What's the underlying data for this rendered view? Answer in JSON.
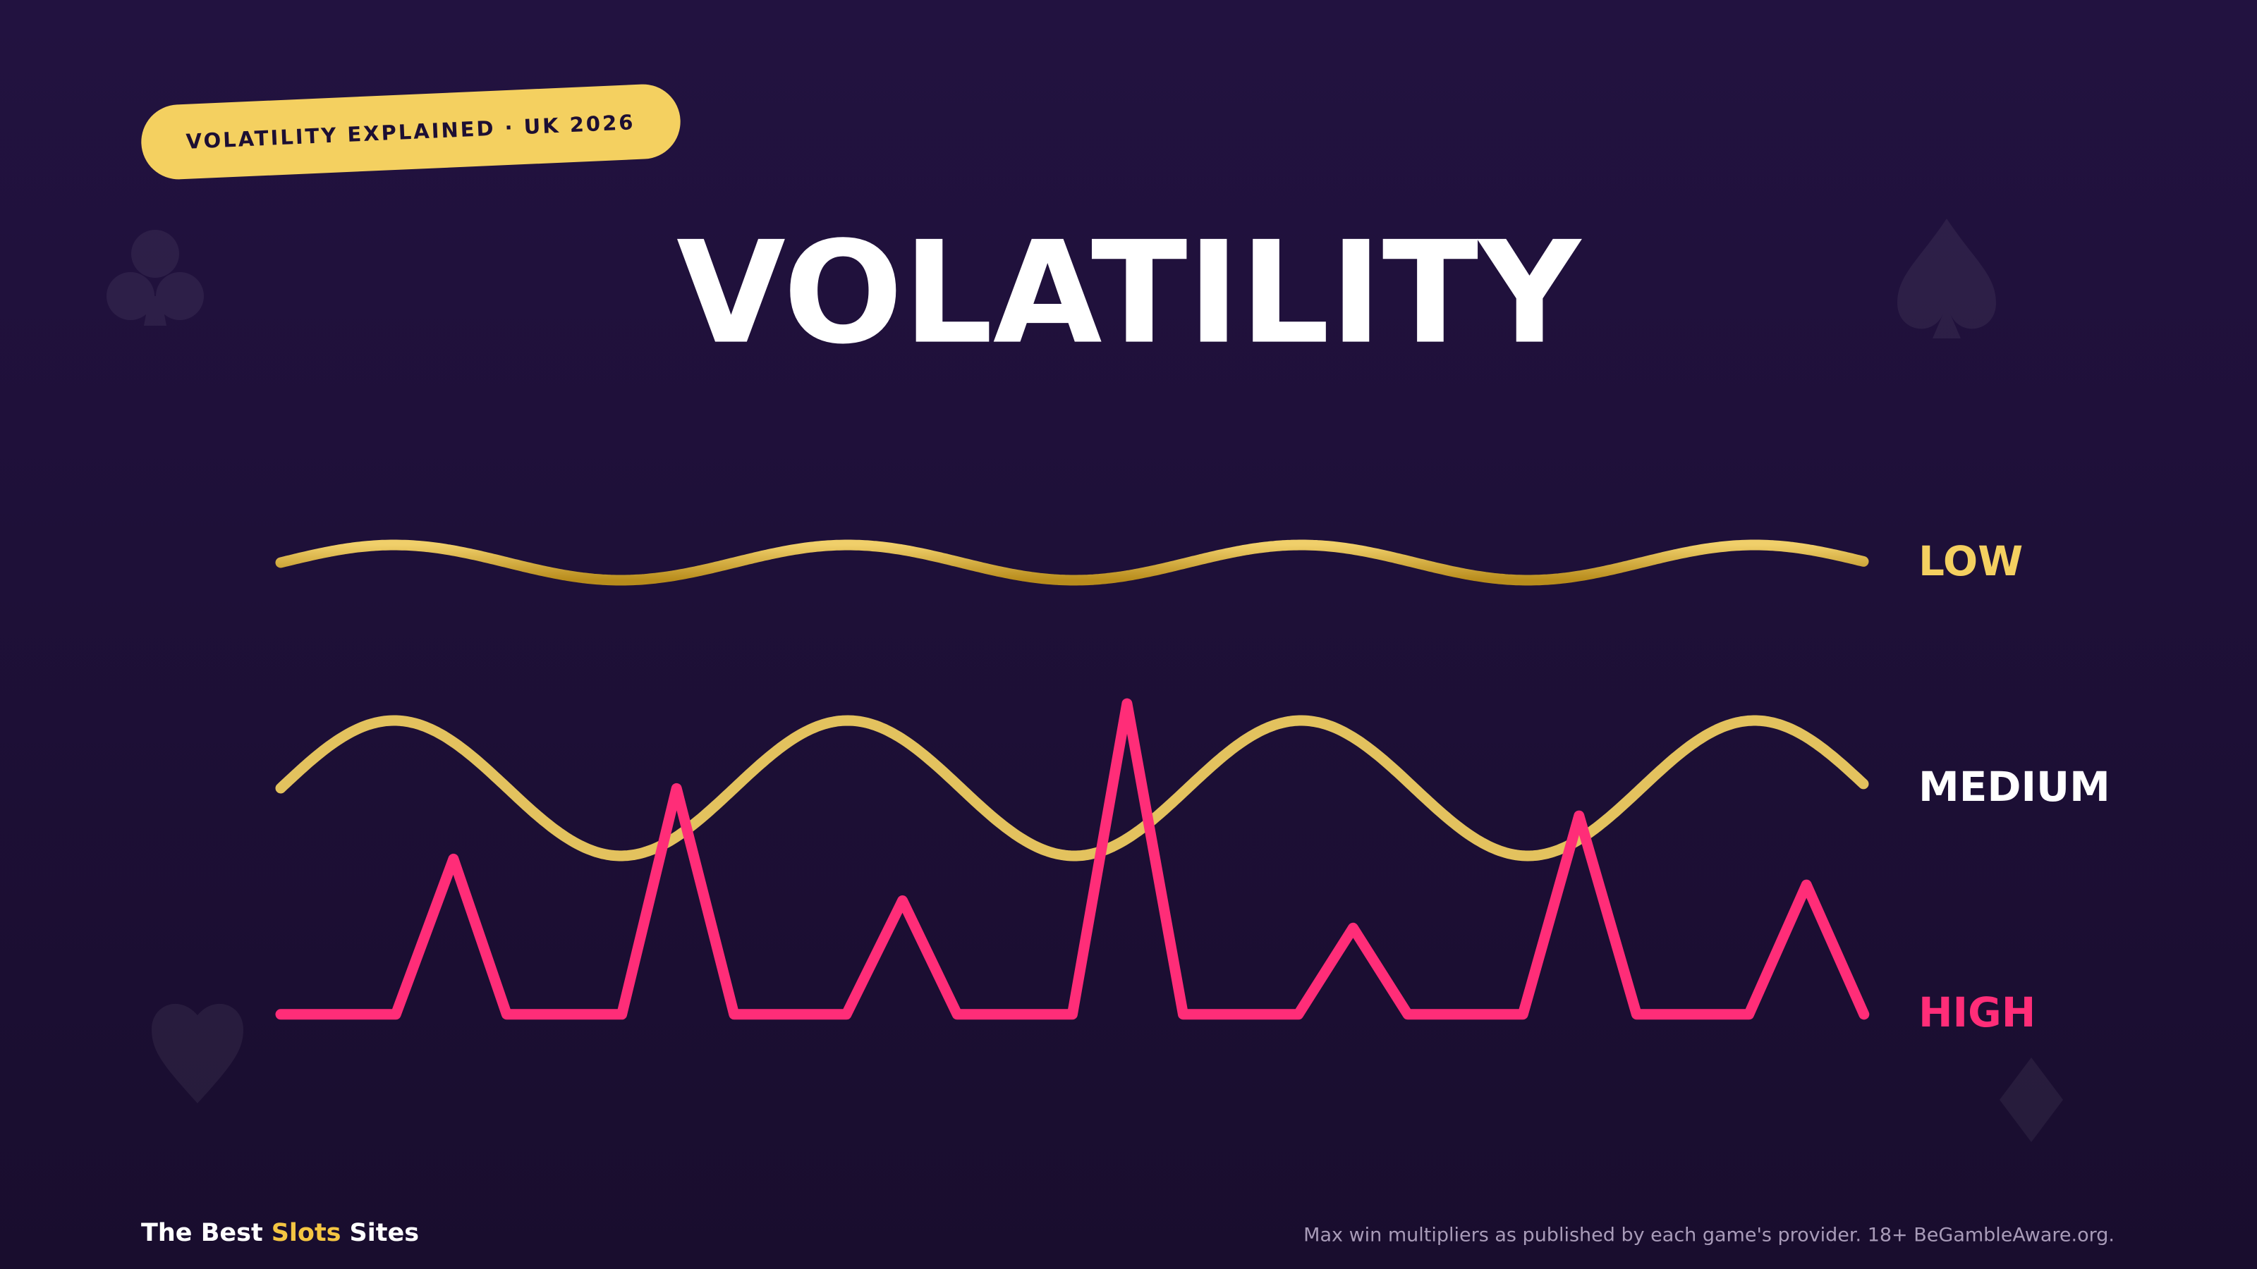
{
  "badge": "VOLATILITY EXPLAINED · UK 2026",
  "title": "VOLATILITY",
  "levels": {
    "low": "LOW",
    "medium": "MEDIUM",
    "high": "HIGH"
  },
  "footer": {
    "brand": [
      "The Best",
      "Slots",
      "Sites"
    ],
    "disclaimer": "Max win multipliers as published by each game's provider. 18+ BeGambleAware.org."
  }
}
